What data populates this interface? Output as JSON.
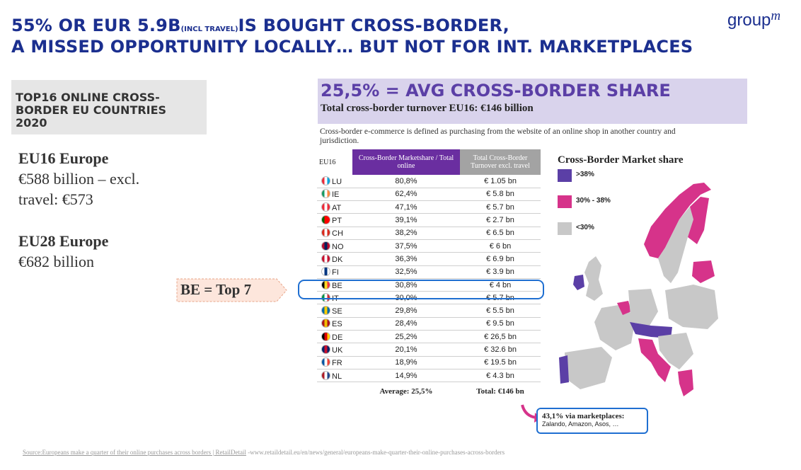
{
  "title": {
    "line1_main": "55% OR EUR 5.9B",
    "line1_small": "(INCL TRAVEL)",
    "line1_rest": "IS BOUGHT CROSS-BORDER,",
    "line2": "A MISSED OPPORTUNITY LOCALLY… BUT NOT FOR INT. MARKETPLACES"
  },
  "logo": {
    "text": "group",
    "suffix": "m"
  },
  "left_box": {
    "line1": "TOP16 ONLINE CROSS-",
    "line2": "BORDER EU COUNTRIES",
    "line3": "2020"
  },
  "eu16": {
    "label": "EU16 Europe",
    "line1": "€588 billion – excl.",
    "line2": "travel: €573"
  },
  "eu28": {
    "label": "EU28 Europe",
    "line1": "€682 billion"
  },
  "callout": {
    "text": "BE = Top 7"
  },
  "header": {
    "title": "25,5% = AVG CROSS-BORDER SHARE",
    "subtitle": "Total cross-border turnover EU16: €146 billion"
  },
  "definition": "Cross-border e-commerce is defined as purchasing from the website of an online shop in another country and jurisdiction.",
  "table": {
    "headers": [
      "EU16",
      "Cross-Border Marketshare / Total online",
      "Total Cross-Border Turnover excl. travel"
    ],
    "rows": [
      {
        "code": "LU",
        "share": "80,8%",
        "turnover": "€ 1.05 bn",
        "flag": [
          "#ed2939",
          "#ffffff",
          "#00a1de"
        ]
      },
      {
        "code": "IE",
        "share": "62,4%",
        "turnover": "€ 5.8 bn",
        "flag": [
          "#169b62",
          "#ffffff",
          "#ff883e"
        ]
      },
      {
        "code": "AT",
        "share": "47,1%",
        "turnover": "€ 5.7 bn",
        "flag": [
          "#ed2939",
          "#ffffff",
          "#ed2939"
        ]
      },
      {
        "code": "PT",
        "share": "39,1%",
        "turnover": "€ 2.7 bn",
        "flag": [
          "#006600",
          "#ff0000",
          "#ff0000"
        ]
      },
      {
        "code": "CH",
        "share": "38,2%",
        "turnover": "€ 6.5 bn",
        "flag": [
          "#da291c",
          "#ffffff",
          "#da291c"
        ]
      },
      {
        "code": "NO",
        "share": "37,5%",
        "turnover": "€ 6 bn",
        "flag": [
          "#ba0c2f",
          "#00205b",
          "#ba0c2f"
        ]
      },
      {
        "code": "DK",
        "share": "36,3%",
        "turnover": "€ 6.9 bn",
        "flag": [
          "#c8102e",
          "#ffffff",
          "#c8102e"
        ]
      },
      {
        "code": "FI",
        "share": "32,5%",
        "turnover": "€ 3.9 bn",
        "flag": [
          "#ffffff",
          "#003580",
          "#ffffff"
        ]
      },
      {
        "code": "BE",
        "share": "30,8%",
        "turnover": "€ 4 bn",
        "flag": [
          "#000000",
          "#fdda24",
          "#ef3340"
        ]
      },
      {
        "code": "IT",
        "share": "30,0%",
        "turnover": "€ 5.7 bn",
        "flag": [
          "#009246",
          "#ffffff",
          "#ce2b37"
        ]
      },
      {
        "code": "SE",
        "share": "29,8%",
        "turnover": "€ 5.5 bn",
        "flag": [
          "#006aa7",
          "#fecc00",
          "#006aa7"
        ]
      },
      {
        "code": "ES",
        "share": "28,4%",
        "turnover": "€ 9.5 bn",
        "flag": [
          "#aa151b",
          "#f1bf00",
          "#aa151b"
        ]
      },
      {
        "code": "DE",
        "share": "25,2%",
        "turnover": "€ 26,5 bn",
        "flag": [
          "#000000",
          "#dd0000",
          "#ffce00"
        ]
      },
      {
        "code": "UK",
        "share": "20,1%",
        "turnover": "€ 32.6 bn",
        "flag": [
          "#012169",
          "#c8102e",
          "#012169"
        ]
      },
      {
        "code": "FR",
        "share": "18,9%",
        "turnover": "€ 19.5 bn",
        "flag": [
          "#0055a4",
          "#ffffff",
          "#ef4135"
        ]
      },
      {
        "code": "NL",
        "share": "14,9%",
        "turnover": "€ 4.3 bn",
        "flag": [
          "#ae1c28",
          "#ffffff",
          "#21468b"
        ]
      }
    ],
    "footer_average": "Average: 25,5%",
    "footer_total": "Total: €146 bn"
  },
  "map": {
    "title": "Cross-Border Market share",
    "legend": [
      {
        "label": ">38%",
        "color": "#5b3fa6"
      },
      {
        "label": "30% - 38%",
        "color": "#d6338a"
      },
      {
        "label": "<30%",
        "color": "#c8c8c8"
      }
    ]
  },
  "marketplace_note": {
    "title": "43,1% via marketplaces:",
    "sub": "Zalando, Amazon, Asos, …"
  },
  "source": {
    "label": "Source:Europeans make a quarter of their online purchases across borders | RetailDetail",
    "url": " -www.retaildetail.eu/en/news/general/europeans-make-quarter-their-online-purchases-across-borders"
  }
}
